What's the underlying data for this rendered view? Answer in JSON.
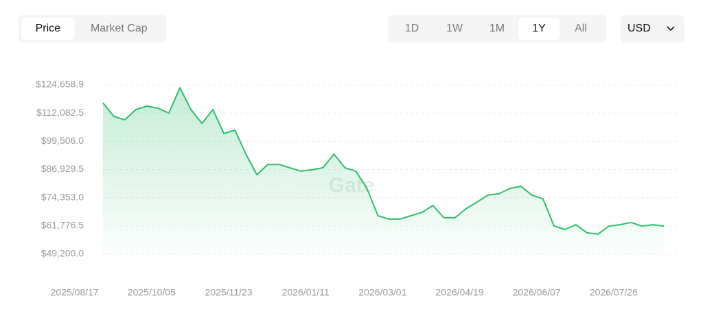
{
  "tabs": [
    "Price",
    "Market Cap"
  ],
  "ranges": [
    "1D",
    "1W",
    "1M",
    "1Y",
    "All"
  ],
  "currency": "USD",
  "watermark": "Gate",
  "chart_data": {
    "type": "line",
    "x": [
      "2025/09/04",
      "2025/09/11",
      "2025/09/18",
      "2025/09/25",
      "2025/10/02",
      "2025/10/09",
      "2025/10/16",
      "2025/10/23",
      "2025/10/30",
      "2025/11/06",
      "2025/11/13",
      "2025/11/20",
      "2025/11/27",
      "2025/12/04",
      "2025/12/11",
      "2025/12/18",
      "2025/12/25",
      "2026/01/01",
      "2026/01/08",
      "2026/01/15",
      "2026/01/22",
      "2026/01/29",
      "2026/02/05",
      "2026/02/12",
      "2026/02/19",
      "2026/02/26",
      "2026/03/05",
      "2026/03/12",
      "2026/03/19",
      "2026/03/26",
      "2026/04/02",
      "2026/04/09",
      "2026/04/16",
      "2026/04/23",
      "2026/04/30",
      "2026/05/07",
      "2026/05/14",
      "2026/05/21",
      "2026/05/28",
      "2026/06/04",
      "2026/06/11",
      "2026/06/18",
      "2026/06/25",
      "2026/07/02",
      "2026/07/09",
      "2026/07/16",
      "2026/07/23",
      "2026/07/30",
      "2026/08/06",
      "2026/08/13",
      "2026/08/20",
      "2026/08/27"
    ],
    "series": [
      {
        "color": "#2dbd6e",
        "values": [
          116700,
          110600,
          109100,
          113700,
          115200,
          114300,
          112100,
          123400,
          113700,
          107500,
          113700,
          103000,
          104500,
          93800,
          84600,
          89200,
          89200,
          87700,
          86200,
          86800,
          87700,
          93800,
          87700,
          86200,
          78500,
          66300,
          64800,
          64800,
          66300,
          67800,
          70900,
          65400,
          65400,
          69400,
          72400,
          75500,
          76100,
          78500,
          79400,
          75500,
          73900,
          61800,
          60200,
          62300,
          58700,
          58100,
          61700,
          62300,
          63300,
          61700,
          62300,
          61700
        ]
      }
    ],
    "xlim": [
      "2025/07/18",
      "2026/09/06"
    ],
    "xticks": [
      "2025/08/17",
      "2025/10/05",
      "2025/11/23",
      "2026/01/11",
      "2026/03/01",
      "2026/04/19",
      "2026/06/07",
      "2026/07/26"
    ],
    "ylim": [
      49200,
      124658.9
    ],
    "yticks": [
      {
        "value": 49200,
        "label": "$49,200.0"
      },
      {
        "value": 61776.5,
        "label": "$61,776.5"
      },
      {
        "value": 74353,
        "label": "$74,353.0"
      },
      {
        "value": 86929.5,
        "label": "$86,929.5"
      },
      {
        "value": 99506,
        "label": "$99,506.0"
      },
      {
        "value": 112082.5,
        "label": "$112,082.5"
      },
      {
        "value": 124658.9,
        "label": "$124,658.9"
      }
    ],
    "grid": true
  }
}
